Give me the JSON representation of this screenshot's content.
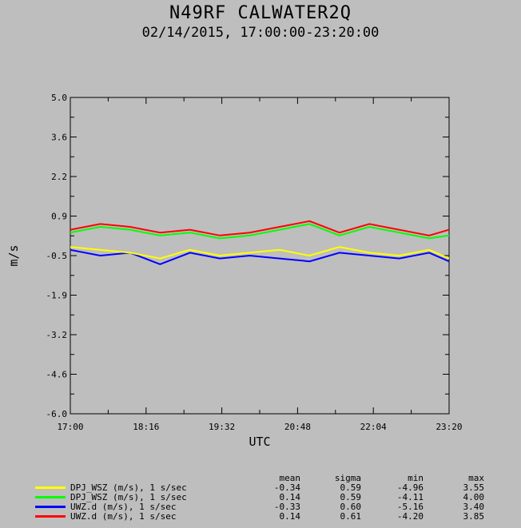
{
  "header": {
    "title": "N49RF CALWATER2Q",
    "subtitle": "02/14/2015, 17:00:00-23:20:00"
  },
  "chart_data": {
    "type": "line",
    "xlabel": "UTC",
    "ylabel": "m/s",
    "x_ticks": [
      "17:00",
      "18:16",
      "19:32",
      "20:48",
      "22:04",
      "23:20"
    ],
    "y_ticks": [
      "5.0",
      "3.6",
      "2.2",
      "0.9",
      "-0.5",
      "-1.9",
      "-3.2",
      "-4.6",
      "-6.0"
    ],
    "ylim": [
      -6.0,
      5.0
    ],
    "xlim": [
      "17:00",
      "23:20"
    ],
    "grid": false,
    "stats_columns": [
      "mean",
      "sigma",
      "min",
      "max"
    ],
    "series": [
      {
        "name": "DPJ_WSZ (m/s), 1 s/sec",
        "color": "#ffff00",
        "mean": "-0.34",
        "sigma": "0.59",
        "min": "-4.96",
        "max": "3.55",
        "times": [
          "17:00",
          "17:30",
          "18:00",
          "18:30",
          "19:00",
          "19:30",
          "20:00",
          "20:30",
          "21:00",
          "21:30",
          "22:00",
          "22:30",
          "23:00",
          "23:20"
        ],
        "values": [
          -0.2,
          -0.3,
          -0.4,
          -0.6,
          -0.3,
          -0.5,
          -0.4,
          -0.3,
          -0.5,
          -0.2,
          -0.4,
          -0.5,
          -0.3,
          -0.6
        ]
      },
      {
        "name": "DPJ_WSZ (m/s), 1 s/sec",
        "color": "#00ff00",
        "mean": "0.14",
        "sigma": "0.59",
        "min": "-4.11",
        "max": "4.00",
        "times": [
          "17:00",
          "17:30",
          "18:00",
          "18:30",
          "19:00",
          "19:30",
          "20:00",
          "20:30",
          "21:00",
          "21:30",
          "22:00",
          "22:30",
          "23:00",
          "23:20"
        ],
        "values": [
          0.3,
          0.5,
          0.4,
          0.2,
          0.3,
          0.1,
          0.2,
          0.4,
          0.6,
          0.2,
          0.5,
          0.3,
          0.1,
          0.2
        ]
      },
      {
        "name": "UWZ.d (m/s), 1 s/sec",
        "color": "#0000ff",
        "mean": "-0.33",
        "sigma": "0.60",
        "min": "-5.16",
        "max": "3.40",
        "times": [
          "17:00",
          "17:30",
          "18:00",
          "18:30",
          "19:00",
          "19:30",
          "20:00",
          "20:30",
          "21:00",
          "21:30",
          "22:00",
          "22:30",
          "23:00",
          "23:20"
        ],
        "values": [
          -0.3,
          -0.5,
          -0.4,
          -0.8,
          -0.4,
          -0.6,
          -0.5,
          -0.6,
          -0.7,
          -0.4,
          -0.5,
          -0.6,
          -0.4,
          -0.7
        ]
      },
      {
        "name": "UWZ.d (m/s), 1 s/sec",
        "color": "#ff0000",
        "mean": "0.14",
        "sigma": "0.61",
        "min": "-4.20",
        "max": "3.85",
        "times": [
          "17:00",
          "17:30",
          "18:00",
          "18:30",
          "19:00",
          "19:30",
          "20:00",
          "20:30",
          "21:00",
          "21:30",
          "22:00",
          "22:30",
          "23:00",
          "23:20"
        ],
        "values": [
          0.4,
          0.6,
          0.5,
          0.3,
          0.4,
          0.2,
          0.3,
          0.5,
          0.7,
          0.3,
          0.6,
          0.4,
          0.2,
          0.4
        ]
      }
    ]
  }
}
